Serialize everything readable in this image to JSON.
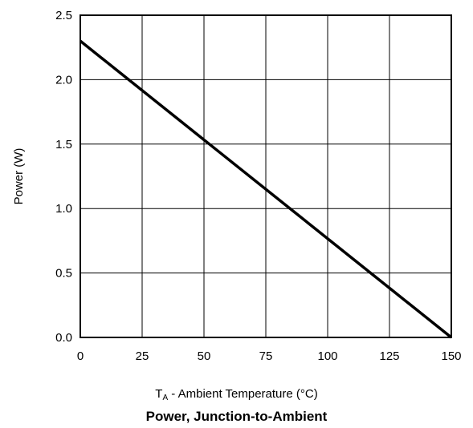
{
  "chart_data": {
    "type": "line",
    "title": "Power, Junction-to-Ambient",
    "xlabel": {
      "symbol": "T",
      "subscript": "A",
      "text": " - Ambient Temperature (°C)"
    },
    "ylabel": "Power (W)",
    "xlim": [
      0,
      150
    ],
    "ylim": [
      0,
      2.5
    ],
    "x_ticks": [
      "0",
      "25",
      "50",
      "75",
      "100",
      "125",
      "150"
    ],
    "y_ticks": [
      "0.0",
      "0.5",
      "1.0",
      "1.5",
      "2.0",
      "2.5"
    ],
    "grid": true,
    "series": [
      {
        "x": [
          0,
          150
        ],
        "y": [
          2.3,
          0.0
        ]
      }
    ],
    "colors": {
      "line": "#000000",
      "grid": "#000000",
      "background": "#ffffff"
    }
  }
}
